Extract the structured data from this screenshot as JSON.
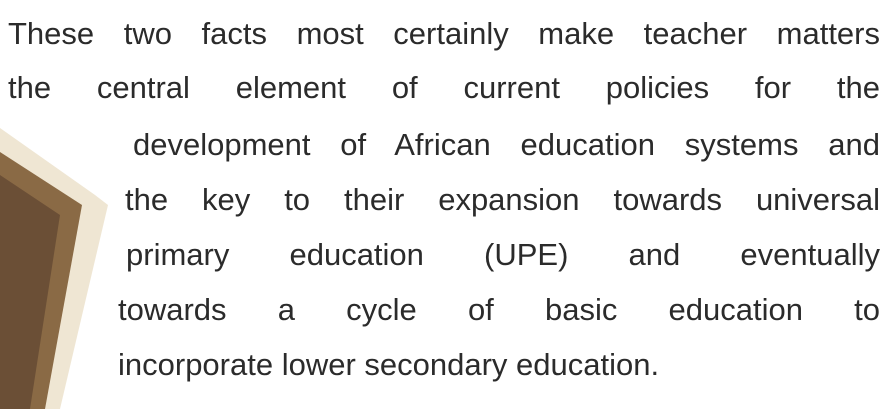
{
  "paragraph": {
    "lines": [
      "These two facts most certainly make teacher matters",
      "the central element of current policies for the",
      "development of African education systems and",
      "the key to their expansion towards universal",
      "primary education (UPE) and eventually",
      "towards a cycle of basic education to",
      "incorporate lower secondary education."
    ]
  }
}
